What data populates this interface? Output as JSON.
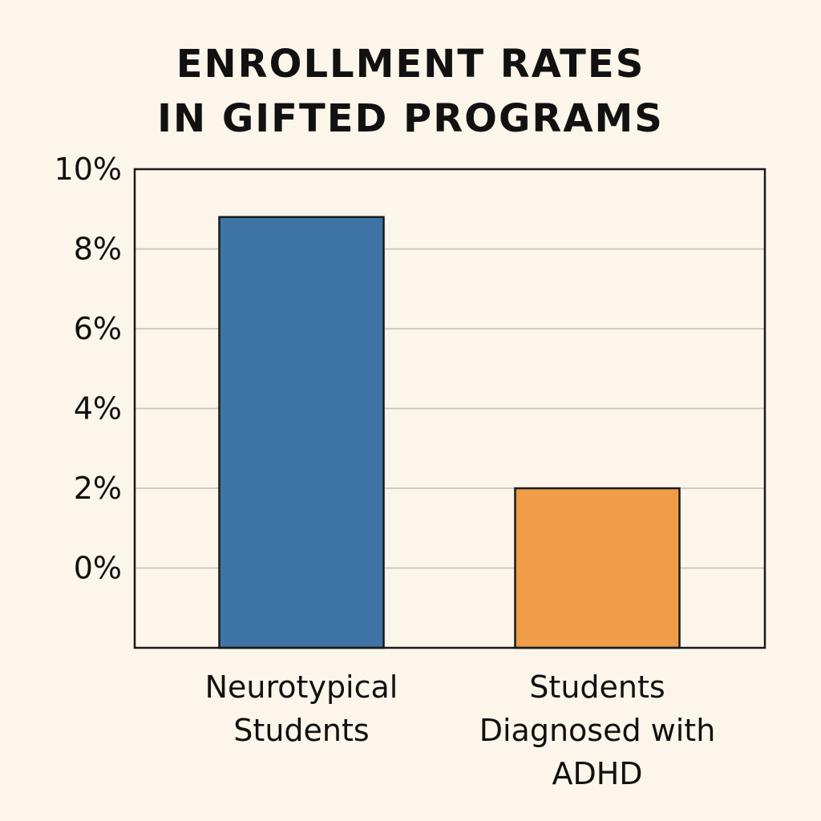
{
  "chart_data": {
    "type": "bar",
    "title_lines": [
      "ENROLLMENT RATES",
      "IN GIFTED PROGRAMS"
    ],
    "categories": [
      [
        "Neurotypical",
        "Students"
      ],
      [
        "Students",
        "Diagnosed with",
        "ADHD"
      ]
    ],
    "values": [
      8.8,
      2.0
    ],
    "value_unit": "%",
    "yticks": [
      0,
      2,
      4,
      6,
      8,
      10
    ],
    "ytick_labels": [
      "0%",
      "2%",
      "4%",
      "6%",
      "8%",
      "10%"
    ],
    "ylim": [
      -2,
      10
    ],
    "grid": true,
    "legend": "none",
    "colors": {
      "background": "#fbf5ea",
      "bars": [
        "#3f75a6",
        "#ef9d48"
      ],
      "outline": "#1a1a1a",
      "grid": "#c9c6bf",
      "text": "#111111"
    }
  }
}
